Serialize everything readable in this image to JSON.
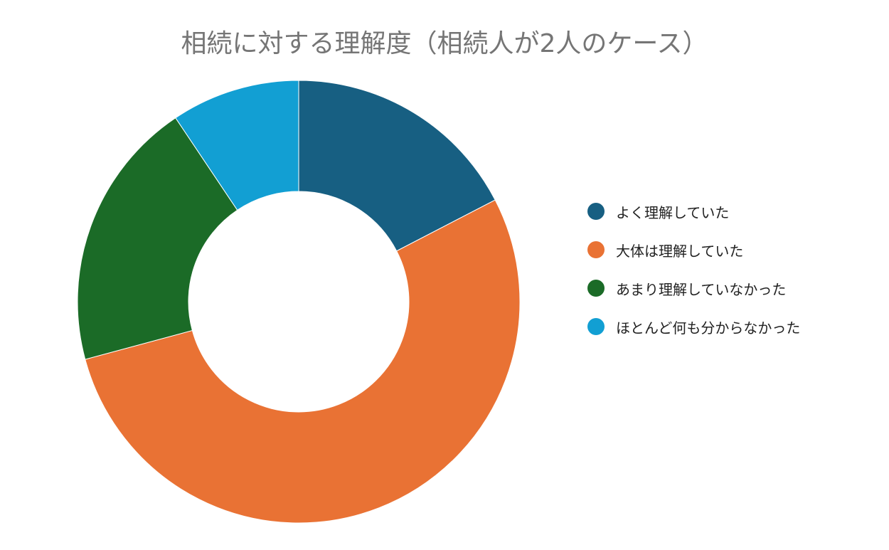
{
  "chart_data": {
    "type": "pie",
    "subtype": "donut",
    "title": "相続に対する理解度（相続人が2人のケース）",
    "categories": [
      "よく理解していた",
      "大体は理解していた",
      "あまり理解していなかった",
      "ほとんど何も分からなかった"
    ],
    "values": [
      17.4,
      53.4,
      19.8,
      9.4
    ],
    "value_unit": "%",
    "colors": [
      "#175f82",
      "#e97234",
      "#1b6b27",
      "#129fd3"
    ],
    "start_angle_deg": 0,
    "direction": "clockwise",
    "legend_position": "right"
  }
}
